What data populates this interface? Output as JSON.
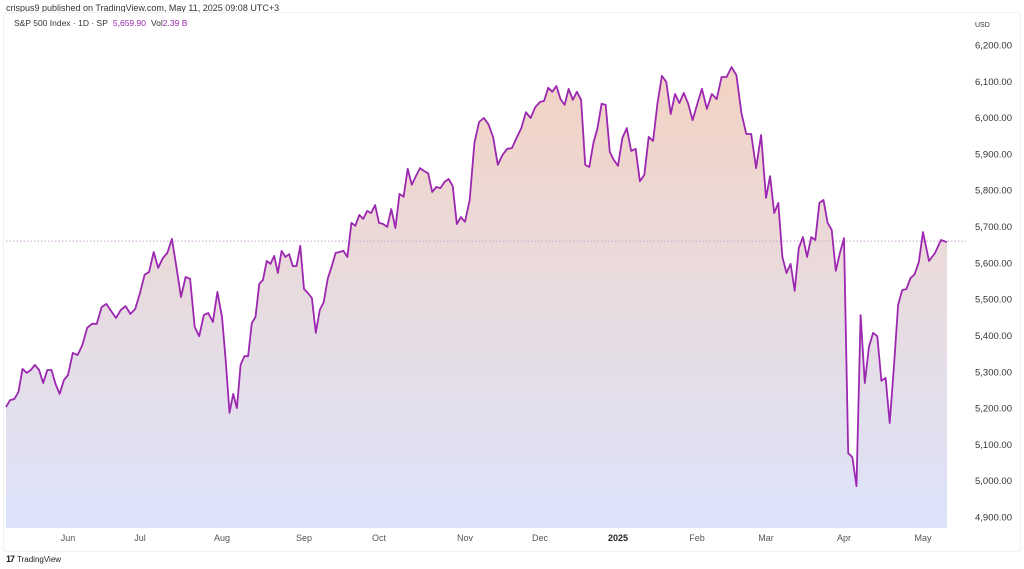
{
  "publisher": "crispus9 published on TradingView.com, May 11, 2025 09:08 UTC+3",
  "legend": {
    "symbol": "S&P 500 Index · 1D · SP",
    "last_price": "5,659.90",
    "vol_label": "Vol",
    "vol_value": "2.39 B"
  },
  "footer": {
    "logo_mark": "17",
    "brand": "TradingView"
  },
  "colors": {
    "line": "#9c27b0",
    "fill_top": "#f3d3c3",
    "fill_bottom": "#dde3fb",
    "price_line": "#c9a0d0"
  },
  "chart_data": {
    "type": "area",
    "currency": "USD",
    "last_value": 5659.9,
    "ylim": [
      4860,
      6240
    ],
    "y_ticks": [
      "6,200.00",
      "6,100.00",
      "6,000.00",
      "5,900.00",
      "5,800.00",
      "5,700.00",
      "5,600.00",
      "5,500.00",
      "5,400.00",
      "5,300.00",
      "5,200.00",
      "5,100.00",
      "5,000.00",
      "4,900.00"
    ],
    "y_tick_values": [
      6200,
      6100,
      6000,
      5900,
      5800,
      5700,
      5600,
      5500,
      5400,
      5300,
      5200,
      5100,
      5000,
      4900
    ],
    "x_ticks": [
      "Jun",
      "Jul",
      "Aug",
      "Sep",
      "Oct",
      "Nov",
      "Dec",
      "2025",
      "Feb",
      "Mar",
      "Apr",
      "May"
    ],
    "grid": false,
    "series_by_month": [
      {
        "month": "2024-05",
        "values": [
          5203,
          5222,
          5225,
          5244,
          5308,
          5297,
          5305,
          5319,
          5305,
          5269,
          5305,
          5305,
          5266,
          5239,
          5277
        ]
      },
      {
        "month": "2024-06",
        "values": [
          5291,
          5352,
          5346,
          5374,
          5421,
          5432,
          5432,
          5478,
          5487,
          5467,
          5448,
          5470,
          5481,
          5459,
          5473
        ]
      },
      {
        "month": "2024-07",
        "values": [
          5517,
          5567,
          5575,
          5630,
          5586,
          5613,
          5627,
          5666,
          5589,
          5506,
          5561,
          5556,
          5423,
          5398,
          5456,
          5462,
          5437,
          5520
        ]
      },
      {
        "month": "2024-08",
        "values": [
          5451,
          5332,
          5187,
          5239,
          5200,
          5319,
          5343,
          5343,
          5434,
          5451,
          5542,
          5553,
          5605,
          5597,
          5619,
          5572,
          5633,
          5616,
          5624,
          5591,
          5591,
          5647
        ]
      },
      {
        "month": "2024-09",
        "values": [
          5528,
          5517,
          5503,
          5407,
          5470,
          5492,
          5556,
          5589,
          5627,
          5630,
          5633,
          5616,
          5710,
          5702,
          5732,
          5721,
          5743,
          5737,
          5759
        ]
      },
      {
        "month": "2024-10",
        "values": [
          5710,
          5707,
          5699,
          5748,
          5696,
          5790,
          5782,
          5859,
          5815,
          5839,
          5861,
          5853,
          5847,
          5795,
          5809,
          5806,
          5823,
          5831,
          5812,
          5707,
          5726
        ]
      },
      {
        "month": "2024-11",
        "values": [
          5713,
          5773,
          5930,
          5988,
          5999,
          5982,
          5947,
          5870,
          5897,
          5914,
          5916,
          5944,
          5971,
          6015,
          5999,
          6029
        ]
      },
      {
        "month": "2024-12",
        "values": [
          6043,
          6046,
          6082,
          6071,
          6087,
          6051,
          6035,
          6079,
          6049,
          6071,
          6049,
          5870,
          5864,
          5930,
          5971,
          6038,
          6035,
          5905,
          5883
        ]
      },
      {
        "month": "2025-01",
        "values": [
          5867,
          5944,
          5971,
          5908,
          5914,
          5825,
          5842,
          5947,
          5936,
          6040,
          6115,
          6098,
          6010,
          6065,
          6040,
          6068,
          6038,
          5993
        ]
      },
      {
        "month": "2025-02",
        "values": [
          6035,
          6079,
          6024,
          6065,
          6051,
          6112,
          6112,
          6139,
          6117,
          6013,
          5955,
          5955,
          5861,
          5952
        ]
      },
      {
        "month": "2025-03",
        "values": [
          5779,
          5839,
          5737,
          5765,
          5616,
          5572,
          5597,
          5523,
          5641,
          5671,
          5616,
          5671,
          5663,
          5765,
          5773,
          5710,
          5691,
          5578,
          5627
        ]
      },
      {
        "month": "2025-04",
        "values": [
          5668,
          5076,
          5065,
          4985,
          5456,
          5269,
          5368,
          5407,
          5398,
          5275,
          5283,
          5159,
          5313,
          5484,
          5525,
          5528,
          5558,
          5569,
          5602
        ]
      },
      {
        "month": "2025-05",
        "values": [
          5685,
          5605,
          5627,
          5663,
          5657
        ]
      }
    ]
  }
}
